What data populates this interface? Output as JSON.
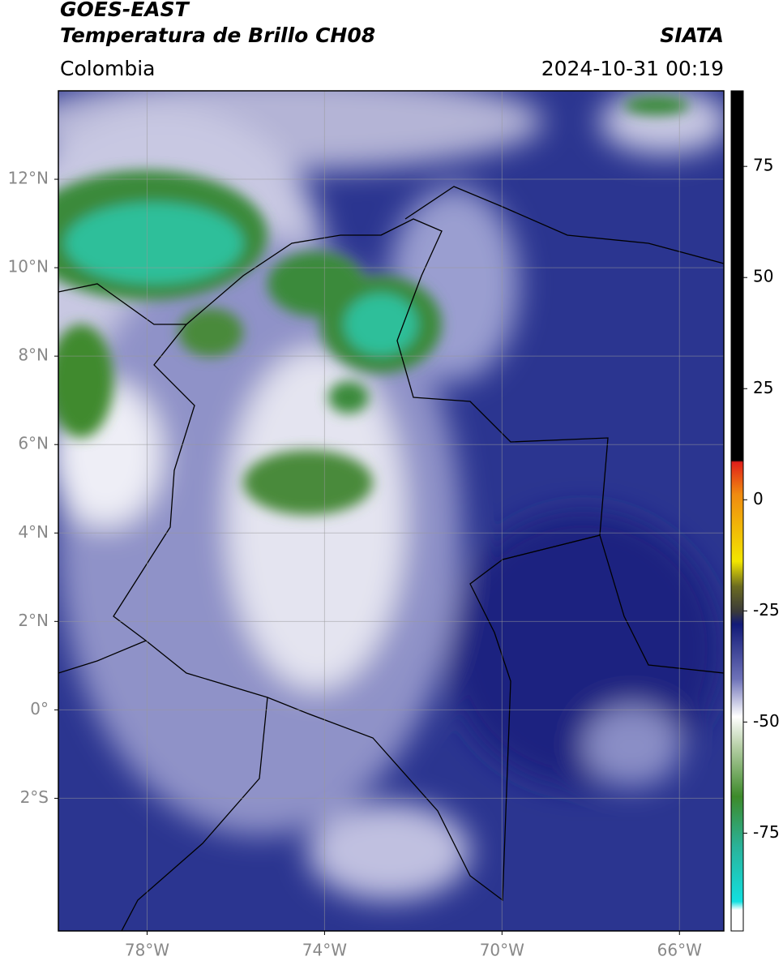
{
  "header": {
    "title": "GOES-EAST",
    "subtitle": "Temperatura de Brillo CH08",
    "source": "SIATA",
    "region": "Colombia",
    "datetime": "2024-10-31 00:19"
  },
  "map": {
    "xlim": [
      -80,
      -65
    ],
    "ylim": [
      -5,
      14
    ],
    "grid": true,
    "xticks": [
      {
        "value": -78,
        "label": "78°W"
      },
      {
        "value": -74,
        "label": "74°W"
      },
      {
        "value": -70,
        "label": "70°W"
      },
      {
        "value": -66,
        "label": "66°W"
      }
    ],
    "yticks": [
      {
        "value": 12,
        "label": "12°N"
      },
      {
        "value": 10,
        "label": "10°N"
      },
      {
        "value": 8,
        "label": "8°N"
      },
      {
        "value": 6,
        "label": "6°N"
      },
      {
        "value": 4,
        "label": "4°N"
      },
      {
        "value": 2,
        "label": "2°N"
      },
      {
        "value": 0,
        "label": "0°"
      },
      {
        "value": -2,
        "label": "2°S"
      }
    ]
  },
  "colorbar": {
    "lim": [
      -97,
      92
    ],
    "ticks": [
      75,
      50,
      25,
      0,
      -25,
      -50,
      -75
    ]
  }
}
